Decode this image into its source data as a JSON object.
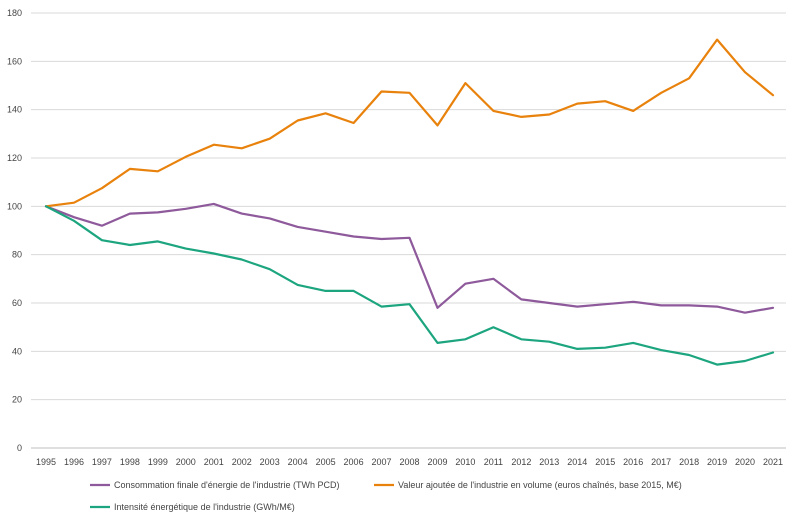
{
  "chart_data": {
    "type": "line",
    "title": "",
    "xlabel": "",
    "ylabel": "",
    "x": [
      "1995",
      "1996",
      "1997",
      "1998",
      "1999",
      "2000",
      "2001",
      "2002",
      "2003",
      "2004",
      "2005",
      "2006",
      "2007",
      "2008",
      "2009",
      "2010",
      "2011",
      "2012",
      "2013",
      "2014",
      "2015",
      "2016",
      "2017",
      "2018",
      "2019",
      "2020",
      "2021"
    ],
    "ylim": [
      0,
      180
    ],
    "yticks": [
      "0",
      "20",
      "40",
      "60",
      "80",
      "100",
      "120",
      "140",
      "160",
      "180"
    ],
    "grid": true,
    "legend_position": "bottom",
    "series": [
      {
        "name": "Consommation finale d'énergie de l'industrie (TWh PCD)",
        "color": "#8e5a9b",
        "values": [
          100,
          95.5,
          92,
          97,
          97.5,
          99,
          101,
          97,
          95,
          91.5,
          89.5,
          87.5,
          86.5,
          87,
          58,
          68,
          70,
          61.5,
          60,
          58.5,
          59.5,
          60.5,
          59,
          59,
          58.5,
          56,
          58
        ]
      },
      {
        "name": "Valeur ajoutée de l'industrie en volume (euros chaînés, base 2015, M€)",
        "color": "#e8820c",
        "values": [
          100,
          101.5,
          107.5,
          115.5,
          114.5,
          120.5,
          125.5,
          124,
          128,
          135.5,
          138.5,
          134.5,
          147.5,
          147,
          133.5,
          151,
          139.5,
          137,
          138,
          142.5,
          143.5,
          139.5,
          147,
          153,
          169,
          155.5,
          146
        ]
      },
      {
        "name": "Intensité énergétique de l'industrie (GWh/M€)",
        "color": "#1ca57f",
        "values": [
          100,
          94,
          86,
          84,
          85.5,
          82.5,
          80.5,
          78,
          74,
          67.5,
          65,
          65,
          58.5,
          59.5,
          43.5,
          45,
          50,
          45,
          44,
          41,
          41.5,
          43.5,
          40.5,
          38.5,
          34.5,
          36,
          39.5
        ]
      }
    ]
  }
}
